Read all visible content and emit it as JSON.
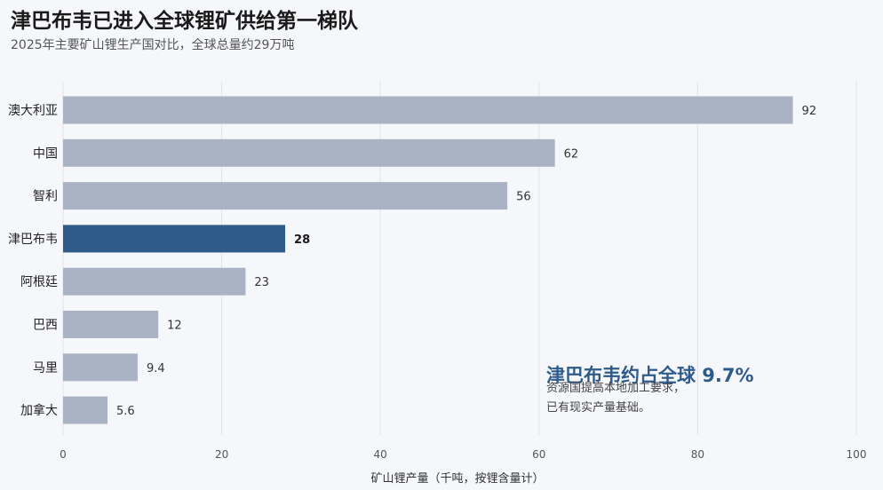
{
  "title": "津巴布韦已进入全球锂矿供给第一梯队",
  "subtitle": "2025年主要矿山锂生产国对比，全球总量约29万吨",
  "colors": {
    "bar": "#a9b3c3",
    "highlight": "#2e5b8a",
    "grid": "#dfe3e8",
    "background": "#f5f7fa"
  },
  "chart_data": {
    "type": "bar",
    "orientation": "horizontal",
    "categories": [
      "澳大利亚",
      "中国",
      "智利",
      "津巴布韦",
      "阿根廷",
      "巴西",
      "马里",
      "加拿大"
    ],
    "values": [
      92,
      62,
      56,
      28,
      23,
      12,
      9.4,
      5.6
    ],
    "value_labels": [
      "92",
      "62",
      "56",
      "28",
      "23",
      "12",
      "9.4",
      "5.6"
    ],
    "highlight_category": "津巴布韦",
    "xlabel": "矿山锂产量（千吨，按锂含量计）",
    "ylabel": "",
    "xlim": [
      0,
      100
    ],
    "xticks": [
      0,
      20,
      40,
      60,
      80,
      100
    ],
    "grid": "vertical",
    "annotation": {
      "title": "津巴布韦约占全球 9.7%",
      "lines": [
        "资源国提高本地加工要求，",
        "已有现实产量基础。"
      ]
    }
  }
}
